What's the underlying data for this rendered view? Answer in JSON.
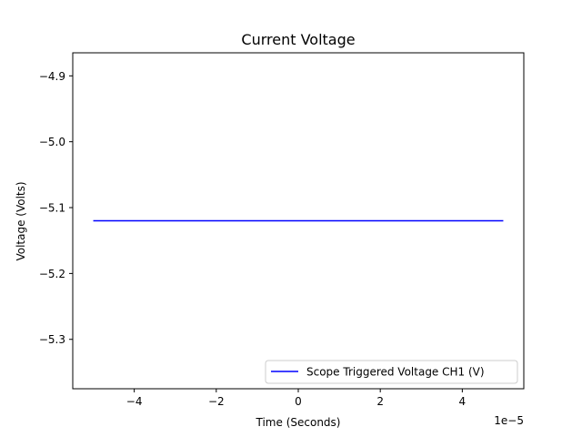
{
  "chart_data": {
    "type": "line",
    "title": "Current Voltage",
    "xlabel": "Time (Seconds)",
    "ylabel": "Voltage (Volts)",
    "x_offset_label": "1e−5",
    "xlim": [
      -5.5,
      5.5
    ],
    "ylim": [
      -5.375,
      -4.865
    ],
    "x_ticks": [
      {
        "value": -4,
        "label": "−4"
      },
      {
        "value": -2,
        "label": "−2"
      },
      {
        "value": 0,
        "label": "0"
      },
      {
        "value": 2,
        "label": "2"
      },
      {
        "value": 4,
        "label": "4"
      }
    ],
    "y_ticks": [
      {
        "value": -4.9,
        "label": "−4.9"
      },
      {
        "value": -5.0,
        "label": "−5.0"
      },
      {
        "value": -5.1,
        "label": "−5.1"
      },
      {
        "value": -5.2,
        "label": "−5.2"
      },
      {
        "value": -5.3,
        "label": "−5.3"
      }
    ],
    "grid": false,
    "legend_position": "bottom-right",
    "series": [
      {
        "name": "Scope Triggered Voltage CH1 (V)",
        "color": "#0000ff",
        "x": [
          -5,
          5
        ],
        "y": [
          -5.12,
          -5.12
        ]
      }
    ]
  }
}
